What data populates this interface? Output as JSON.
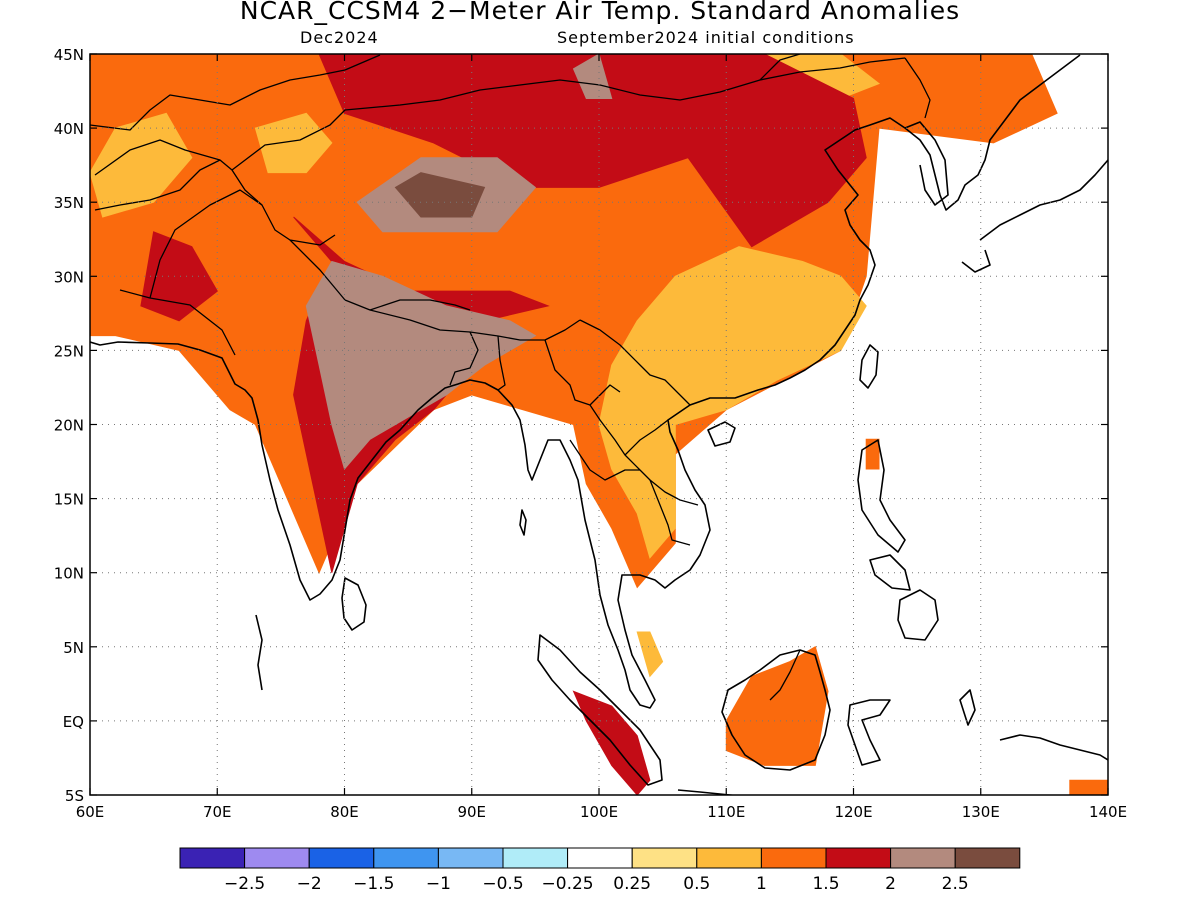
{
  "title": "NCAR_CCSM4 2−Meter Air Temp. Standard Anomalies",
  "valid_month": "Dec2024",
  "init_conditions": "September2024 initial conditions",
  "chart_data": {
    "type": "heatmap",
    "lon_range": [
      60,
      140
    ],
    "lat_range": [
      -5,
      45
    ],
    "lon_ticks": [
      "60E",
      "70E",
      "80E",
      "90E",
      "100E",
      "110E",
      "120E",
      "130E",
      "140E"
    ],
    "lat_ticks": [
      "45N",
      "40N",
      "35N",
      "30N",
      "25N",
      "20N",
      "15N",
      "10N",
      "5N",
      "EQ",
      "5S"
    ],
    "grid": true,
    "colorbar": {
      "bins": [
        {
          "color": "#3a22b4"
        },
        {
          "color": "#9e8af0"
        },
        {
          "color": "#1a62e6"
        },
        {
          "color": "#3f95f0"
        },
        {
          "color": "#78b8f4"
        },
        {
          "color": "#b0ecf8"
        },
        {
          "color": "#ffffff"
        },
        {
          "color": "#fee185"
        },
        {
          "color": "#fdba3a"
        },
        {
          "color": "#fa6a0d"
        },
        {
          "color": "#c30c16"
        },
        {
          "color": "#b38a7e"
        },
        {
          "color": "#7a4c3e"
        }
      ],
      "labels": [
        "−2.5",
        "−2",
        "−1.5",
        "−1",
        "−0.5",
        "−0.25",
        "0.25",
        "0.5",
        "1",
        "1.5",
        "2",
        "2.5"
      ]
    },
    "regions": [
      {
        "level": "1.5",
        "color": "#fa6a0d",
        "lonlat": [
          [
            60,
            26
          ],
          [
            60,
            45
          ],
          [
            134,
            45
          ],
          [
            136,
            41
          ],
          [
            131,
            39
          ],
          [
            122,
            40
          ],
          [
            121,
            30
          ],
          [
            119,
            25
          ],
          [
            110,
            21
          ],
          [
            106,
            18
          ],
          [
            106,
            12
          ],
          [
            103,
            9
          ],
          [
            101,
            13
          ],
          [
            99,
            16
          ],
          [
            98,
            20
          ],
          [
            94,
            21
          ],
          [
            90,
            22
          ],
          [
            87,
            21
          ],
          [
            81,
            16
          ],
          [
            78,
            10
          ],
          [
            76,
            14
          ],
          [
            73,
            20
          ],
          [
            71,
            21
          ],
          [
            67,
            25
          ],
          [
            62,
            26
          ]
        ]
      },
      {
        "level": "1.0",
        "color": "#fdba3a",
        "lonlat": [
          [
            100,
            20
          ],
          [
            101,
            24
          ],
          [
            103,
            27
          ],
          [
            106,
            30
          ],
          [
            111,
            32
          ],
          [
            116,
            31
          ],
          [
            119,
            30
          ],
          [
            121,
            28
          ],
          [
            119,
            25
          ],
          [
            114,
            23
          ],
          [
            110,
            21
          ],
          [
            106,
            20
          ],
          [
            106,
            17
          ],
          [
            106,
            13
          ],
          [
            104,
            11
          ],
          [
            103,
            14
          ],
          [
            101,
            17
          ]
        ]
      },
      {
        "level": "1.0",
        "color": "#fdba3a",
        "lonlat": [
          [
            60,
            37
          ],
          [
            62,
            40
          ],
          [
            66,
            41
          ],
          [
            68,
            38
          ],
          [
            65,
            35
          ],
          [
            61,
            34
          ]
        ]
      },
      {
        "level": "1.0",
        "color": "#fdba3a",
        "lonlat": [
          [
            73,
            40
          ],
          [
            77,
            41
          ],
          [
            79,
            39
          ],
          [
            77,
            37
          ],
          [
            74,
            37
          ]
        ]
      },
      {
        "level": "1.0",
        "color": "#fdba3a",
        "lonlat": [
          [
            105,
            45
          ],
          [
            119,
            45
          ],
          [
            122,
            43
          ],
          [
            116,
            41
          ],
          [
            110,
            43
          ],
          [
            106,
            43
          ]
        ]
      },
      {
        "level": "2.0",
        "color": "#c30c16",
        "lonlat": [
          [
            78,
            45
          ],
          [
            80,
            41
          ],
          [
            87,
            39
          ],
          [
            94,
            36
          ],
          [
            100,
            36
          ],
          [
            107,
            38
          ],
          [
            112,
            32
          ],
          [
            118,
            35
          ],
          [
            121,
            38
          ],
          [
            120,
            42
          ],
          [
            113,
            45
          ]
        ]
      },
      {
        "level": "2.0",
        "color": "#c30c16",
        "lonlat": [
          [
            76,
            34
          ],
          [
            79,
            31
          ],
          [
            77,
            27
          ],
          [
            76,
            22
          ],
          [
            78,
            14
          ],
          [
            79,
            10
          ],
          [
            80,
            13
          ],
          [
            81,
            16
          ],
          [
            84,
            19
          ],
          [
            87,
            21
          ],
          [
            89,
            23
          ],
          [
            91,
            27
          ],
          [
            96,
            28
          ],
          [
            93,
            29
          ],
          [
            85,
            29
          ],
          [
            80,
            31
          ]
        ]
      },
      {
        "level": "2.0",
        "color": "#c30c16",
        "lonlat": [
          [
            65,
            33
          ],
          [
            68,
            32
          ],
          [
            70,
            29
          ],
          [
            67,
            27
          ],
          [
            64,
            28
          ]
        ]
      },
      {
        "level": "2.5",
        "color": "#b38a7e",
        "lonlat": [
          [
            79,
            31
          ],
          [
            83,
            30
          ],
          [
            88,
            28
          ],
          [
            93,
            27
          ],
          [
            95,
            26
          ],
          [
            91,
            24
          ],
          [
            88,
            22
          ],
          [
            86,
            21
          ],
          [
            82,
            19
          ],
          [
            80,
            17
          ],
          [
            79,
            20
          ],
          [
            78,
            24
          ],
          [
            77,
            28
          ]
        ]
      },
      {
        "level": "2.5",
        "color": "#b38a7e",
        "lonlat": [
          [
            81,
            35
          ],
          [
            86,
            38
          ],
          [
            92,
            38
          ],
          [
            95,
            36
          ],
          [
            92,
            33
          ],
          [
            86,
            33
          ],
          [
            83,
            33
          ]
        ]
      },
      {
        "level": "2.5",
        "color": "#b38a7e",
        "lonlat": [
          [
            98,
            44
          ],
          [
            100,
            45
          ],
          [
            101,
            42
          ],
          [
            99,
            42
          ]
        ]
      },
      {
        "level": "2.5+",
        "color": "#7a4c3e",
        "lonlat": [
          [
            84,
            36
          ],
          [
            86,
            37
          ],
          [
            91,
            36
          ],
          [
            90,
            34
          ],
          [
            86,
            34
          ]
        ]
      },
      {
        "level": "1.5",
        "color": "#fa6a0d",
        "lonlat": [
          [
            110,
            0
          ],
          [
            112,
            3
          ],
          [
            115,
            4
          ],
          [
            117,
            5
          ],
          [
            118,
            2
          ],
          [
            117,
            -3
          ],
          [
            113,
            -3
          ],
          [
            110,
            -2
          ]
        ]
      },
      {
        "level": "2.0",
        "color": "#c30c16",
        "lonlat": [
          [
            98,
            2
          ],
          [
            101,
            1
          ],
          [
            103,
            -1
          ],
          [
            104,
            -4
          ],
          [
            103,
            -5
          ],
          [
            101,
            -3
          ],
          [
            99,
            0
          ]
        ]
      },
      {
        "level": "1.5",
        "color": "#fa6a0d",
        "lonlat": [
          [
            137,
            -4
          ],
          [
            140,
            -4
          ],
          [
            140,
            -5
          ],
          [
            137,
            -5
          ]
        ]
      },
      {
        "level": "1.0",
        "color": "#fdba3a",
        "lonlat": [
          [
            103,
            6
          ],
          [
            104,
            6
          ],
          [
            105,
            4
          ],
          [
            104,
            3
          ]
        ]
      },
      {
        "level": "1.5",
        "color": "#fa6a0d",
        "lonlat": [
          [
            121,
            19
          ],
          [
            122,
            19
          ],
          [
            122,
            17
          ],
          [
            121,
            17
          ]
        ]
      }
    ]
  }
}
